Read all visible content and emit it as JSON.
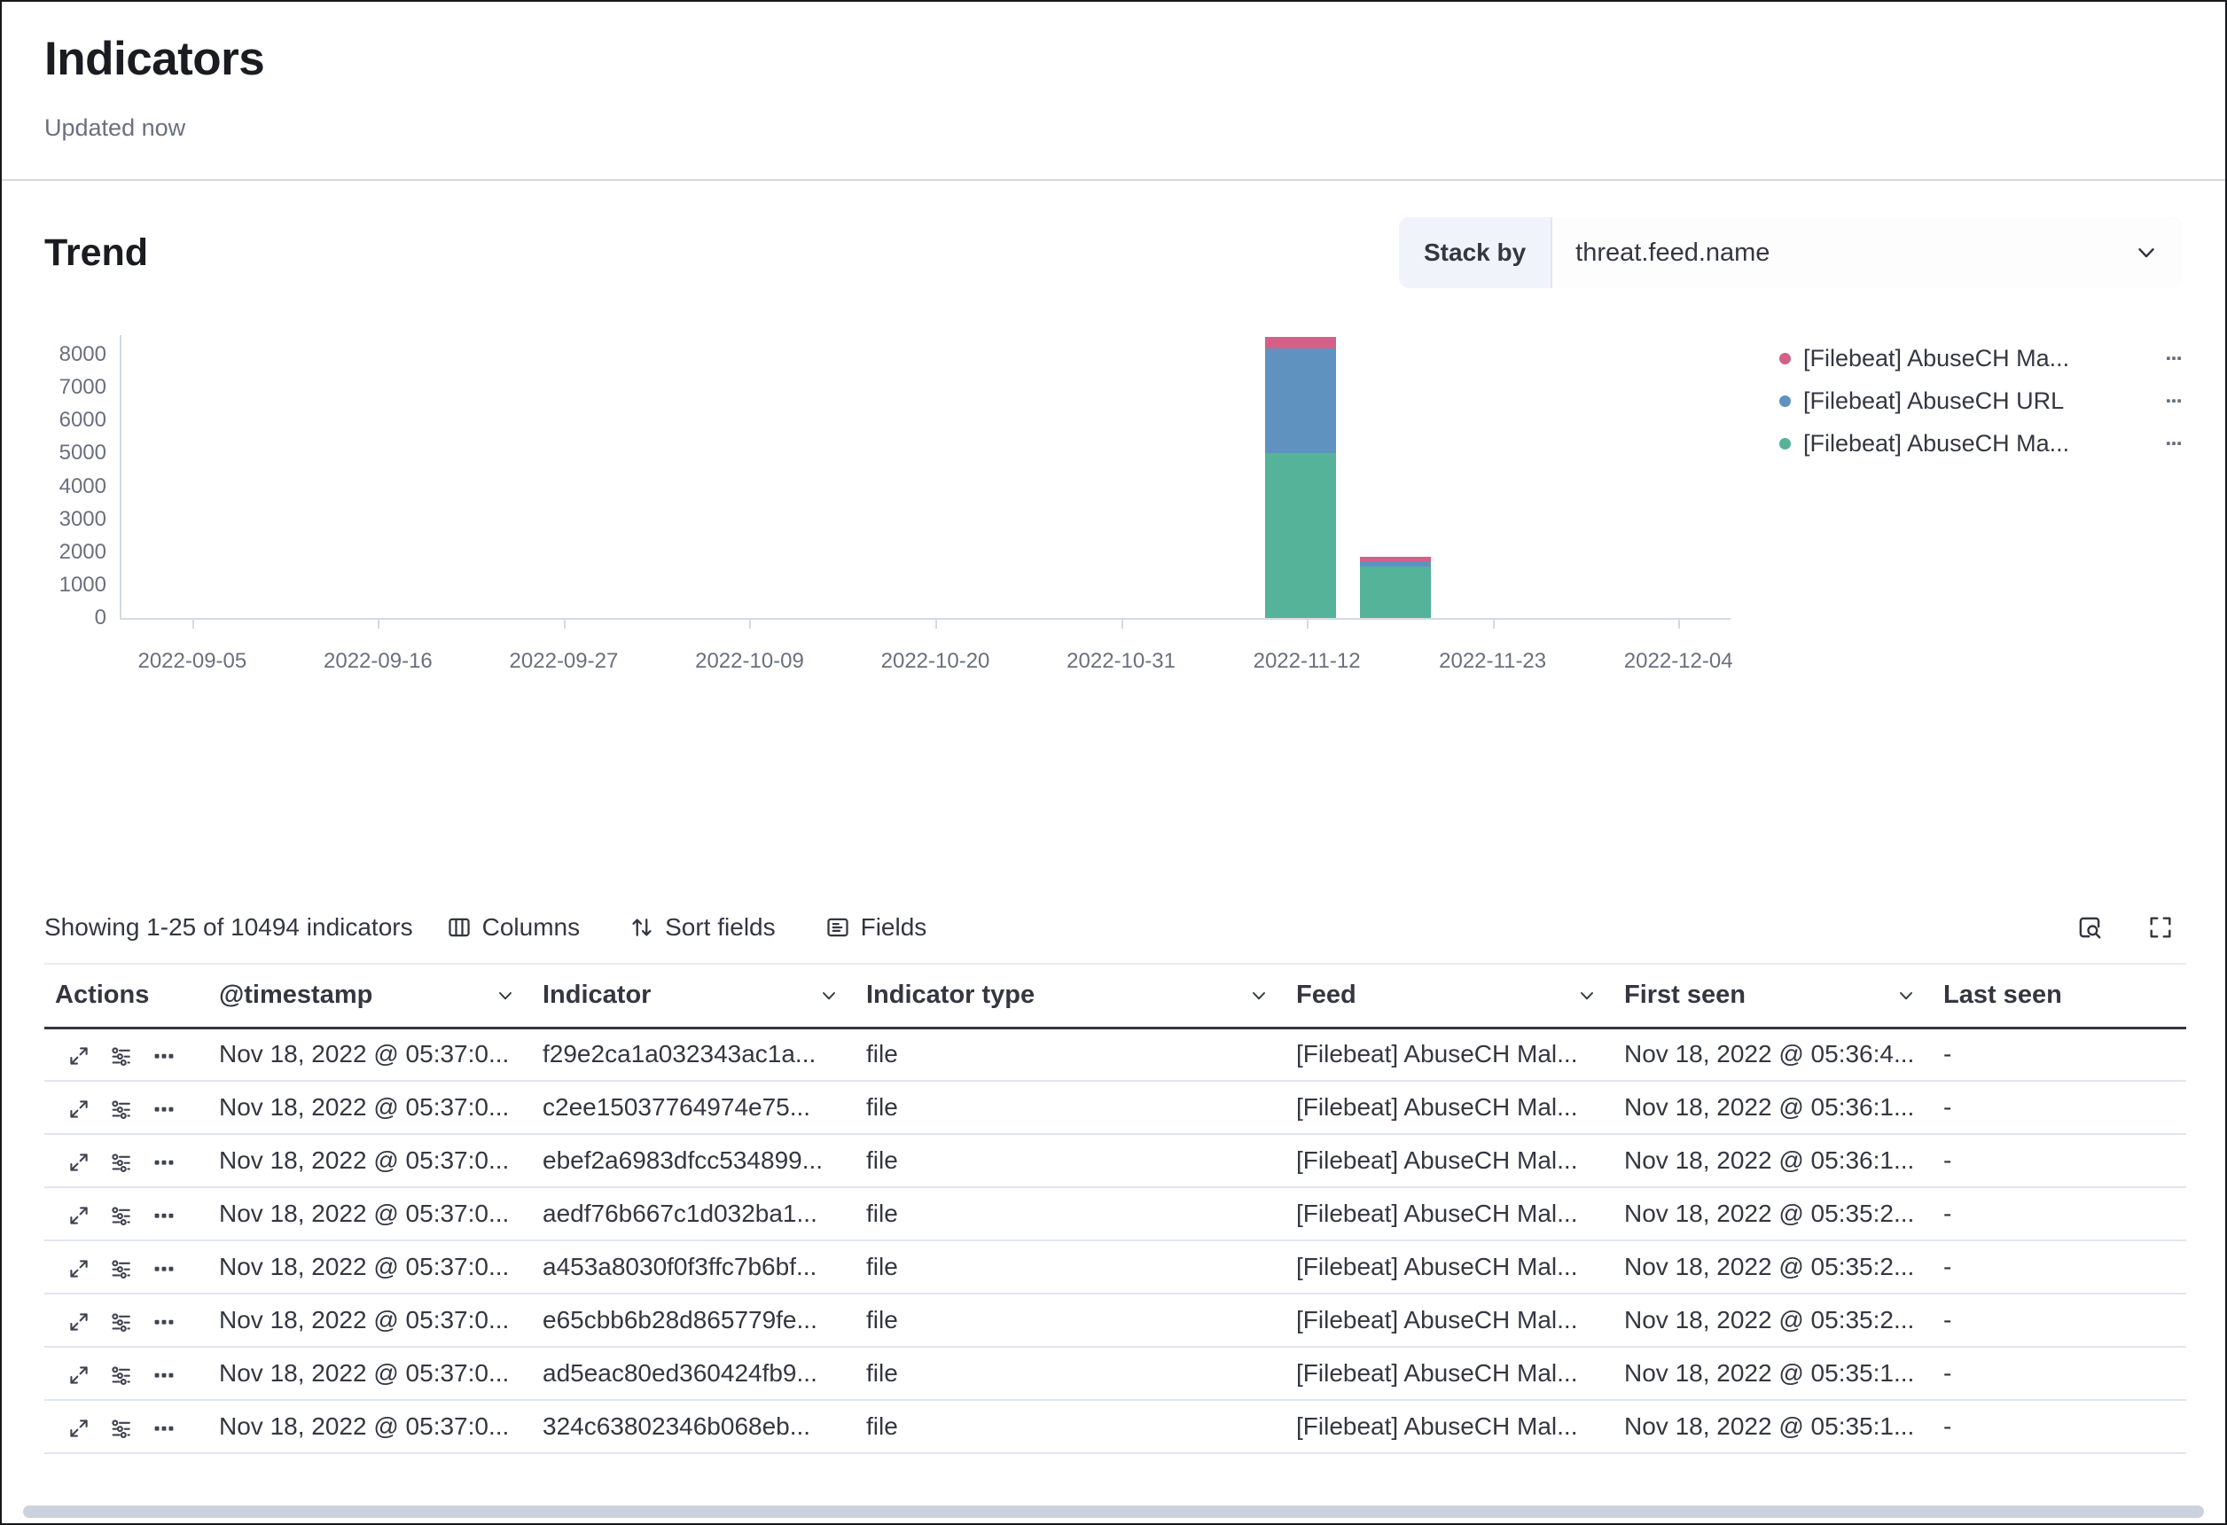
{
  "page": {
    "title": "Indicators",
    "updated": "Updated now"
  },
  "trend": {
    "heading": "Trend",
    "stack_by_label": "Stack by",
    "stack_by_value": "threat.feed.name"
  },
  "legend": {
    "items": [
      {
        "label": "[Filebeat] AbuseCH Ma...",
        "color": "#D36086"
      },
      {
        "label": "[Filebeat] AbuseCH URL",
        "color": "#6092C0"
      },
      {
        "label": "[Filebeat] AbuseCH Ma...",
        "color": "#54B399"
      }
    ]
  },
  "chart_data": {
    "type": "bar",
    "stacked": true,
    "title": "Trend",
    "grid": false,
    "legend_position": "right",
    "x_axis": {
      "tick_labels": [
        "2022-09-05",
        "2022-09-16",
        "2022-09-27",
        "2022-10-09",
        "2022-10-20",
        "2022-10-31",
        "2022-11-12",
        "2022-11-23",
        "2022-12-04"
      ]
    },
    "y_axis": {
      "ticks": [
        0,
        1000,
        2000,
        3000,
        4000,
        5000,
        6000,
        7000,
        8000
      ],
      "max": 8600
    },
    "bars": [
      {
        "x_label": "2022-11-12",
        "x_frac": 0.733
      },
      {
        "x_label": "2022-11-17",
        "x_frac": 0.792
      }
    ],
    "series": [
      {
        "name": "[Filebeat] AbuseCH Ma...",
        "color": "#54B399",
        "values": [
          5000,
          1550
        ]
      },
      {
        "name": "[Filebeat] AbuseCH URL",
        "color": "#6092C0",
        "values": [
          3200,
          180
        ]
      },
      {
        "name": "[Filebeat] AbuseCH Ma...",
        "color": "#D36086",
        "values": [
          330,
          130
        ]
      }
    ]
  },
  "toolbar": {
    "showing": "Showing 1-25 of 10494 indicators",
    "buttons": [
      {
        "label": "Columns",
        "icon": "table-columns-icon"
      },
      {
        "label": "Sort fields",
        "icon": "sort-icon"
      },
      {
        "label": "Fields",
        "icon": "fields-icon"
      }
    ],
    "icon_buttons": [
      {
        "icon": "inspect-icon"
      },
      {
        "icon": "fullscreen-icon"
      }
    ]
  },
  "table": {
    "columns": [
      {
        "label": "Actions",
        "sortable": false
      },
      {
        "label": "@timestamp",
        "sortable": true
      },
      {
        "label": "Indicator",
        "sortable": true
      },
      {
        "label": "Indicator type",
        "sortable": true
      },
      {
        "label": "Feed",
        "sortable": true
      },
      {
        "label": "First seen",
        "sortable": true
      },
      {
        "label": "Last seen",
        "sortable": false
      }
    ],
    "row_actions": [
      {
        "name": "expand-row",
        "icon": "expand-icon"
      },
      {
        "name": "investigate-in-timeline",
        "icon": "investigate-in-timeline-icon"
      },
      {
        "name": "more-actions",
        "icon": "more-actions-icon"
      }
    ],
    "rows": [
      {
        "timestamp": "Nov 18, 2022 @ 05:37:0...",
        "indicator": "f29e2ca1a032343ac1a...",
        "type": "file",
        "feed": "[Filebeat] AbuseCH Mal...",
        "first_seen": "Nov 18, 2022 @ 05:36:4...",
        "last_seen": "-"
      },
      {
        "timestamp": "Nov 18, 2022 @ 05:37:0...",
        "indicator": "c2ee15037764974e75...",
        "type": "file",
        "feed": "[Filebeat] AbuseCH Mal...",
        "first_seen": "Nov 18, 2022 @ 05:36:1...",
        "last_seen": "-"
      },
      {
        "timestamp": "Nov 18, 2022 @ 05:37:0...",
        "indicator": "ebef2a6983dfcc534899...",
        "type": "file",
        "feed": "[Filebeat] AbuseCH Mal...",
        "first_seen": "Nov 18, 2022 @ 05:36:1...",
        "last_seen": "-"
      },
      {
        "timestamp": "Nov 18, 2022 @ 05:37:0...",
        "indicator": "aedf76b667c1d032ba1...",
        "type": "file",
        "feed": "[Filebeat] AbuseCH Mal...",
        "first_seen": "Nov 18, 2022 @ 05:35:2...",
        "last_seen": "-"
      },
      {
        "timestamp": "Nov 18, 2022 @ 05:37:0...",
        "indicator": "a453a8030f0f3ffc7b6bf...",
        "type": "file",
        "feed": "[Filebeat] AbuseCH Mal...",
        "first_seen": "Nov 18, 2022 @ 05:35:2...",
        "last_seen": "-"
      },
      {
        "timestamp": "Nov 18, 2022 @ 05:37:0...",
        "indicator": "e65cbb6b28d865779fe...",
        "type": "file",
        "feed": "[Filebeat] AbuseCH Mal...",
        "first_seen": "Nov 18, 2022 @ 05:35:2...",
        "last_seen": "-"
      },
      {
        "timestamp": "Nov 18, 2022 @ 05:37:0...",
        "indicator": "ad5eac80ed360424fb9...",
        "type": "file",
        "feed": "[Filebeat] AbuseCH Mal...",
        "first_seen": "Nov 18, 2022 @ 05:35:1...",
        "last_seen": "-"
      },
      {
        "timestamp": "Nov 18, 2022 @ 05:37:0...",
        "indicator": "324c63802346b068eb...",
        "type": "file",
        "feed": "[Filebeat] AbuseCH Mal...",
        "first_seen": "Nov 18, 2022 @ 05:35:1...",
        "last_seen": "-"
      }
    ]
  }
}
